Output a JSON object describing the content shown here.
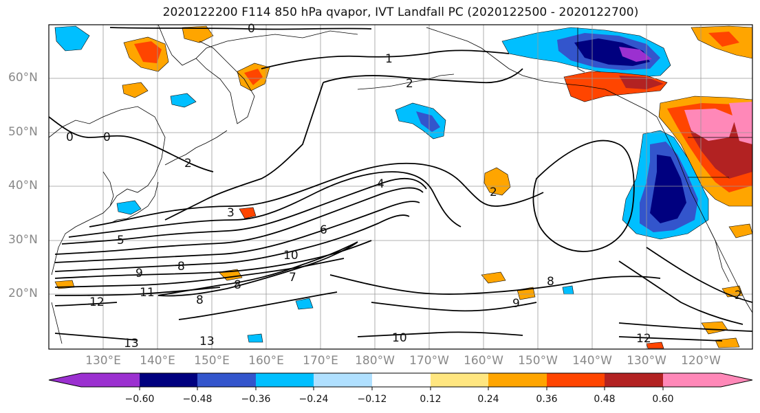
{
  "title": "2020122200 F114 850 hPa qvapor, IVT Landfall PC (2020122500 - 2020122700)",
  "lat_labels": [
    "60°N",
    "50°N",
    "40°N",
    "30°N",
    "20°N"
  ],
  "lon_labels": [
    "130°E",
    "140°E",
    "150°E",
    "160°E",
    "170°E",
    "180°W",
    "170°W",
    "160°W",
    "150°W",
    "140°W",
    "130°W",
    "120°W"
  ],
  "colorbar": {
    "tick_labels": [
      "−0.60",
      "−0.48",
      "−0.36",
      "−0.24",
      "−0.12",
      "0.12",
      "0.24",
      "0.36",
      "0.48",
      "0.60"
    ],
    "colors": [
      "#9b30d0",
      "#00007f",
      "#3355cc",
      "#00bfff",
      "#b0e0ff",
      "#ffffff",
      "#ffe680",
      "#ffa500",
      "#ff4500",
      "#b22222",
      "#ff88b8"
    ]
  },
  "contour_labels": [
    "0",
    "0",
    "0",
    "1",
    "2",
    "2",
    "2",
    "3",
    "4",
    "5",
    "6",
    "7",
    "8",
    "8",
    "8",
    "8",
    "9",
    "9",
    "10",
    "10",
    "11",
    "12",
    "12",
    "13",
    "13",
    "2"
  ]
}
